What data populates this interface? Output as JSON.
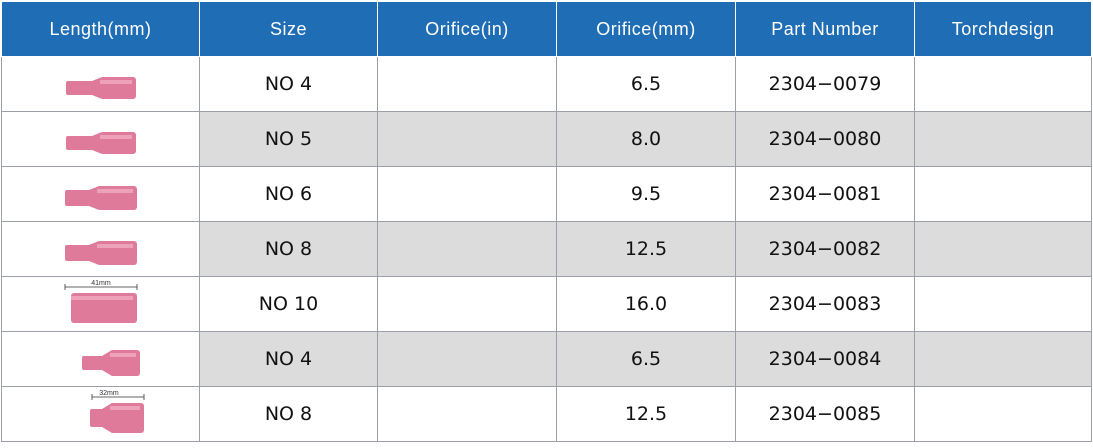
{
  "headers": [
    "Length(mm)",
    "Size",
    "Orifice(in)",
    "Orifice(mm)",
    "Part Number",
    "Torchdesign"
  ],
  "rows": [
    {
      "size": "NO 4",
      "orifice_in": "",
      "orifice_mm": "6.5",
      "part": "2304−0079",
      "torch": "",
      "length_label": ""
    },
    {
      "size": "NO 5",
      "orifice_in": "",
      "orifice_mm": "8.0",
      "part": "2304−0080",
      "torch": "",
      "length_label": ""
    },
    {
      "size": "NO 6",
      "orifice_in": "",
      "orifice_mm": "9.5",
      "part": "2304−0081",
      "torch": "",
      "length_label": ""
    },
    {
      "size": "NO 8",
      "orifice_in": "",
      "orifice_mm": "12.5",
      "part": "2304−0082",
      "torch": "",
      "length_label": ""
    },
    {
      "size": "NO 10",
      "orifice_in": "",
      "orifice_mm": "16.0",
      "part": "2304−0083",
      "torch": "",
      "length_label": "41mm"
    },
    {
      "size": "NO 4",
      "orifice_in": "",
      "orifice_mm": "6.5",
      "part": "2304−0084",
      "torch": "",
      "length_label": ""
    },
    {
      "size": "NO 8",
      "orifice_in": "",
      "orifice_mm": "12.5",
      "part": "2304−0085",
      "torch": "",
      "length_label": "32mm"
    }
  ],
  "colors": {
    "header_bg": "#1f6db5",
    "alt_row_bg": "#dcdcdc",
    "nozzle": "#e07a9a"
  }
}
